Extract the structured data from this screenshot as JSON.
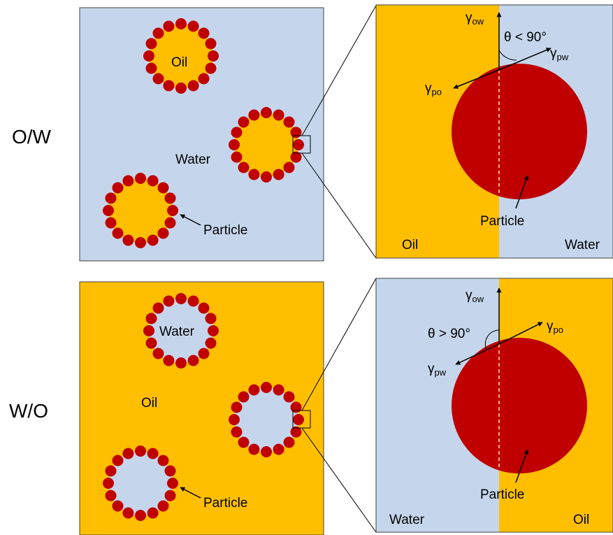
{
  "colors": {
    "water": "#c5d6ec",
    "oil": "#ffbf00",
    "particle": "#c00000",
    "outline": "#404040",
    "ink": "#000000"
  },
  "rows": [
    {
      "label": "O/W",
      "continuous_phase": "Water",
      "droplet_phase": "Oil",
      "continuous_label": "Water",
      "droplet_label": "Oil",
      "particle_label": "Particle",
      "zoom": {
        "left_label": "Oil",
        "right_label": "Water",
        "particle_label": "Particle",
        "angle_label": "θ < 90°",
        "vectors": {
          "top": "γow",
          "right": "γpw",
          "left": "γpo"
        },
        "vector_parts": {
          "top": {
            "base": "γ",
            "sub": "ow"
          },
          "right": {
            "base": "γ",
            "sub": "pw"
          },
          "left": {
            "base": "γ",
            "sub": "po"
          }
        }
      }
    },
    {
      "label": "W/O",
      "continuous_phase": "Oil",
      "droplet_phase": "Water",
      "continuous_label": "Oil",
      "droplet_label": "Water",
      "particle_label": "Particle",
      "zoom": {
        "left_label": "Water",
        "right_label": "Oil",
        "particle_label": "Particle",
        "angle_label": "θ > 90°",
        "vectors": {
          "top": "γow",
          "right": "γpo",
          "left": "γpw"
        },
        "vector_parts": {
          "top": {
            "base": "γ",
            "sub": "ow"
          },
          "right": {
            "base": "γ",
            "sub": "po"
          },
          "left": {
            "base": "γ",
            "sub": "pw"
          }
        }
      }
    }
  ]
}
